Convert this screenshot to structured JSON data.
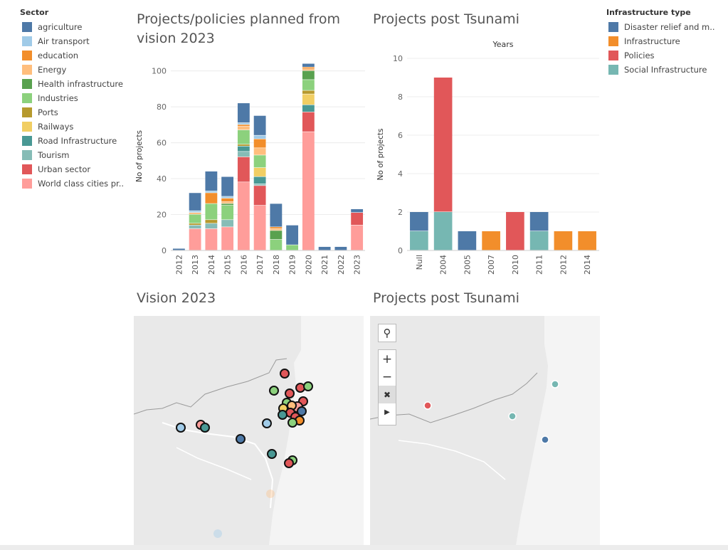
{
  "legend_sector": {
    "title": "Sector",
    "items": [
      {
        "label": "agriculture",
        "color": "#4e79a7"
      },
      {
        "label": "Air transport",
        "color": "#a0cbe8"
      },
      {
        "label": "education",
        "color": "#f28e2b"
      },
      {
        "label": "Energy",
        "color": "#ffbe7d"
      },
      {
        "label": "Health infrastructure",
        "color": "#59a14f"
      },
      {
        "label": "Industries",
        "color": "#8cd17d"
      },
      {
        "label": "Ports",
        "color": "#b6992d"
      },
      {
        "label": "Railways",
        "color": "#f1ce63"
      },
      {
        "label": "Road Infrastructure",
        "color": "#499894"
      },
      {
        "label": "Tourism",
        "color": "#86bcb6"
      },
      {
        "label": "Urban sector",
        "color": "#e15759"
      },
      {
        "label": "World class cities pr..",
        "color": "#ff9d9a"
      }
    ]
  },
  "legend_infra": {
    "title": "Infrastructure type",
    "items": [
      {
        "label": "Disaster relief and m..",
        "color": "#4e79a7"
      },
      {
        "label": "Infrastructure",
        "color": "#f28e2b"
      },
      {
        "label": "Policies",
        "color": "#e15759"
      },
      {
        "label": "Social Infrastructure",
        "color": "#76b7b2"
      }
    ]
  },
  "charts": {
    "vision_title": "Projects/policies planned from vision 2023",
    "tsunami_title": "Projects post Tsunami"
  },
  "maps": {
    "vision_title": "Vision 2023",
    "tsunami_title": "Projects post Tsunami",
    "tsunami_points_colors": [
      "#e15759",
      "#76b7b2",
      "#76b7b2",
      "#4e79a7"
    ]
  },
  "chart_data": [
    {
      "type": "bar",
      "stacked": true,
      "title": "Projects/policies planned from vision 2023",
      "xlabel": "",
      "ylabel": "No of projects",
      "ylim": [
        0,
        105
      ],
      "yticks": [
        0,
        20,
        40,
        60,
        80,
        100
      ],
      "categories": [
        "2012",
        "2013",
        "2014",
        "2015",
        "2016",
        "2017",
        "2018",
        "2019",
        "2020",
        "2021",
        "2022",
        "2023"
      ],
      "series": [
        {
          "name": "World class cities pr..",
          "color": "#ff9d9a",
          "values": [
            0,
            12,
            12,
            13,
            38,
            25,
            0,
            0,
            66,
            0,
            0,
            14
          ]
        },
        {
          "name": "Urban sector",
          "color": "#e15759",
          "values": [
            0,
            0,
            0,
            0,
            14,
            11,
            0,
            0,
            11,
            0,
            0,
            7
          ]
        },
        {
          "name": "Tourism",
          "color": "#86bcb6",
          "values": [
            0,
            2,
            3,
            4,
            3,
            1,
            0,
            0,
            0,
            0,
            0,
            0
          ]
        },
        {
          "name": "Road Infrastructure",
          "color": "#499894",
          "values": [
            0,
            0,
            0,
            0,
            3,
            4,
            0,
            0,
            4,
            0,
            0,
            0
          ]
        },
        {
          "name": "Railways",
          "color": "#f1ce63",
          "values": [
            0,
            0,
            0,
            0,
            0,
            5,
            0,
            0,
            6,
            0,
            0,
            0
          ]
        },
        {
          "name": "Ports",
          "color": "#b6992d",
          "values": [
            0,
            1,
            2,
            0,
            1,
            0,
            0,
            0,
            2,
            0,
            0,
            0
          ]
        },
        {
          "name": "Industries",
          "color": "#8cd17d",
          "values": [
            0,
            5,
            9,
            8,
            8,
            7,
            6,
            3,
            6,
            0,
            0,
            0
          ]
        },
        {
          "name": "Health infrastructure",
          "color": "#59a14f",
          "values": [
            0,
            0,
            0,
            1,
            0,
            0,
            5,
            0,
            5,
            0,
            0,
            0
          ]
        },
        {
          "name": "Energy",
          "color": "#ffbe7d",
          "values": [
            0,
            1,
            0,
            1,
            2,
            4,
            1,
            0,
            1,
            0,
            0,
            0
          ]
        },
        {
          "name": "education",
          "color": "#f28e2b",
          "values": [
            0,
            0,
            6,
            2,
            1,
            5,
            1,
            0,
            1,
            0,
            0,
            0
          ]
        },
        {
          "name": "Air transport",
          "color": "#a0cbe8",
          "values": [
            0,
            1,
            1,
            1,
            1,
            2,
            0,
            0,
            0,
            0,
            0,
            0
          ]
        },
        {
          "name": "agriculture",
          "color": "#4e79a7",
          "values": [
            1,
            10,
            11,
            11,
            11,
            11,
            13,
            11,
            2,
            2,
            2,
            2
          ]
        }
      ]
    },
    {
      "type": "bar",
      "stacked": true,
      "title": "Projects post Tsunami",
      "xlabel": "Years",
      "ylabel": "No of projects",
      "ylim": [
        0,
        10
      ],
      "yticks": [
        0,
        2,
        4,
        6,
        8,
        10
      ],
      "categories": [
        "Null",
        "2004",
        "2005",
        "2007",
        "2010",
        "2011",
        "2012",
        "2014"
      ],
      "series": [
        {
          "name": "Social Infrastructure",
          "color": "#76b7b2",
          "values": [
            1,
            2,
            0,
            0,
            0,
            1,
            0,
            0
          ]
        },
        {
          "name": "Policies",
          "color": "#e15759",
          "values": [
            0,
            7,
            0,
            0,
            2,
            0,
            0,
            0
          ]
        },
        {
          "name": "Infrastructure",
          "color": "#f28e2b",
          "values": [
            0,
            0,
            0,
            1,
            0,
            0,
            1,
            1
          ]
        },
        {
          "name": "Disaster relief and m..",
          "color": "#4e79a7",
          "values": [
            1,
            0,
            1,
            0,
            0,
            1,
            0,
            0
          ]
        }
      ]
    }
  ]
}
